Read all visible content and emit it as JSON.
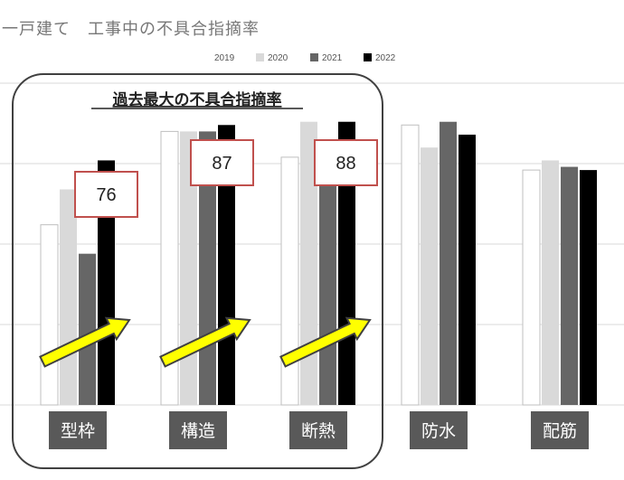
{
  "page_title": "一戸建て　工事中の不具合指摘率",
  "colors": {
    "series": [
      "#ffffff",
      "#d9d9d9",
      "#666666",
      "#000000"
    ],
    "category_box": "#595959",
    "callout_border": "#c0504d",
    "arrow_fill": "#ffff00",
    "gridline": "#d9d9d9"
  },
  "highlight_label": "過去最大の不具合指摘率",
  "chart_data": {
    "type": "bar",
    "categories": [
      "型枠",
      "構造",
      "断熱",
      "防水",
      "配筋"
    ],
    "series": [
      {
        "name": "2019",
        "values": [
          56,
          85,
          77,
          87,
          73
        ]
      },
      {
        "name": "2020",
        "values": [
          67,
          85,
          88,
          80,
          76
        ]
      },
      {
        "name": "2021",
        "values": [
          47,
          85,
          70,
          88,
          74
        ]
      },
      {
        "name": "2022",
        "values": [
          76,
          87,
          88,
          84,
          73
        ]
      }
    ],
    "callouts": [
      {
        "category": "型枠",
        "label": "76"
      },
      {
        "category": "構造",
        "label": "87"
      },
      {
        "category": "断熱",
        "label": "88"
      }
    ],
    "ylim": [
      0,
      100
    ],
    "grid": true,
    "legend_position": "top-right",
    "xlabel": "",
    "ylabel": ""
  }
}
